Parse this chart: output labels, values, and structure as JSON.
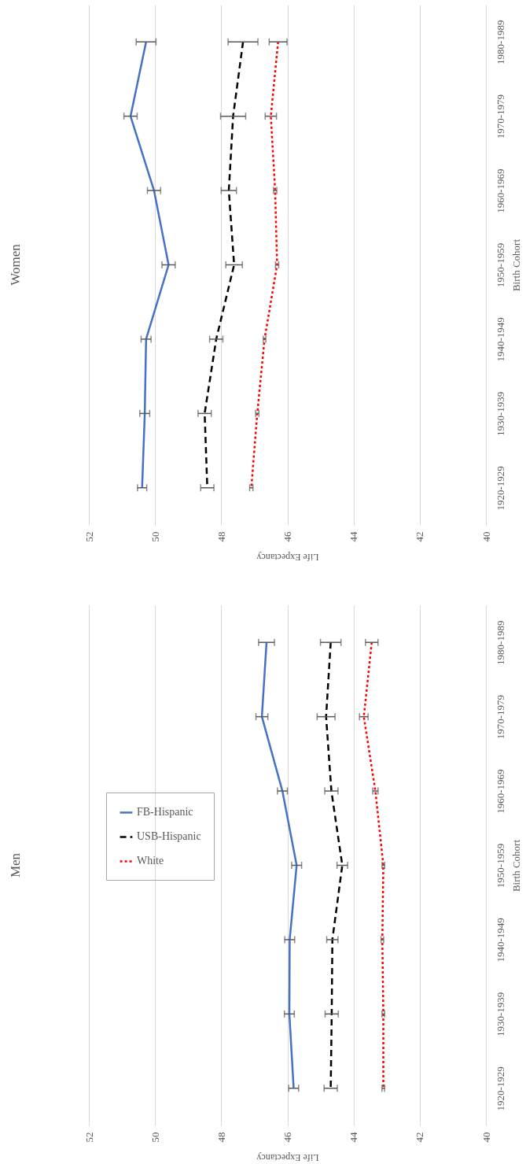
{
  "chart_data": [
    {
      "type": "line",
      "orientation": "horizontal",
      "title": "Women",
      "xlabel": "Life Expectancy",
      "ylabel": "Birth Cohort",
      "categories": [
        "1980-1989",
        "1970-1979",
        "1960-1969",
        "1950-1959",
        "1940-1949",
        "1930-1939",
        "1920-1929"
      ],
      "xlim": [
        52,
        40
      ],
      "xticks": [
        52,
        50,
        48,
        46,
        44,
        42,
        40
      ],
      "grid": "x",
      "legend": false,
      "series": [
        {
          "color": "#4472c4",
          "line_style": "solid",
          "values": [
            50.27,
            50.74,
            50.03,
            49.59,
            50.27,
            50.31,
            50.39
          ],
          "errors": [
            0.3,
            0.2,
            0.2,
            0.2,
            0.15,
            0.15,
            0.14
          ]
        },
        {
          "color": "#000000",
          "line_style": "dashed",
          "values": [
            47.34,
            47.64,
            47.77,
            47.61,
            48.15,
            48.5,
            48.42
          ],
          "errors": [
            0.45,
            0.38,
            0.23,
            0.25,
            0.2,
            0.2,
            0.2
          ]
        },
        {
          "color": "#ff0000",
          "line_style": "dotted",
          "values": [
            46.28,
            46.5,
            46.37,
            46.31,
            46.69,
            46.91,
            47.09
          ],
          "errors": [
            0.27,
            0.17,
            0.05,
            0.05,
            0.04,
            0.05,
            0.05
          ]
        }
      ]
    },
    {
      "type": "line",
      "orientation": "horizontal",
      "title": "Men",
      "xlabel": "Life Expectancy",
      "ylabel": "Birth Cohort",
      "categories": [
        "1980-1989",
        "1970-1979",
        "1960-1969",
        "1950-1959",
        "1940-1949",
        "1930-1939",
        "1920-1929"
      ],
      "xlim": [
        52,
        40
      ],
      "xticks": [
        52,
        50,
        48,
        46,
        44,
        42,
        40
      ],
      "grid": "x",
      "legend": "left",
      "series": [
        {
          "name": "FB-Hispanic",
          "color": "#4472c4",
          "line_style": "solid",
          "values": [
            46.63,
            46.77,
            46.15,
            45.72,
            45.93,
            45.94,
            45.81
          ],
          "errors": [
            0.24,
            0.18,
            0.15,
            0.15,
            0.15,
            0.15,
            0.15
          ]
        },
        {
          "name": "USB-Hispanic",
          "color": "#000000",
          "line_style": "dashed",
          "values": [
            44.69,
            44.83,
            44.67,
            44.34,
            44.64,
            44.66,
            44.69
          ],
          "errors": [
            0.31,
            0.27,
            0.2,
            0.16,
            0.17,
            0.2,
            0.2
          ]
        },
        {
          "name": "White",
          "color": "#ff0000",
          "line_style": "dotted",
          "values": [
            43.45,
            43.69,
            43.34,
            43.1,
            43.13,
            43.1,
            43.1
          ],
          "errors": [
            0.19,
            0.13,
            0.08,
            0.04,
            0.04,
            0.04,
            0.04
          ]
        }
      ]
    }
  ]
}
